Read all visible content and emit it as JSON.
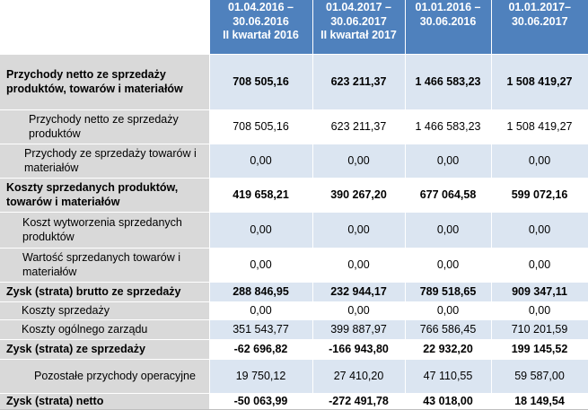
{
  "headers": [
    "",
    "01.04.2016 –\n30.06.2016\nII kwartał 2016",
    "01.04.2017 –\n30.06.2017\nII kwartał 2017",
    "01.01.2016 –\n30.06.2016",
    "01.01.2017–\n30.06.2017"
  ],
  "rows": [
    {
      "label": "Przychody netto ze sprzedaży produktów, towarów i materiałów",
      "values": [
        "708 505,16",
        "623 211,37",
        "1 466 583,23",
        "1 508 419,27"
      ]
    },
    {
      "label": "Przychody netto ze sprzedaży produktów",
      "values": [
        "708 505,16",
        "623 211,37",
        "1 466 583,23",
        "1 508 419,27"
      ]
    },
    {
      "label": "Przychody ze sprzedaży towarów i materiałów",
      "values": [
        "0,00",
        "0,00",
        "0,00",
        "0,00"
      ]
    },
    {
      "label": "Koszty sprzedanych produktów, towarów i materiałów",
      "values": [
        "419 658,21",
        "390 267,20",
        "677 064,58",
        "599 072,16"
      ]
    },
    {
      "label": "Koszt wytworzenia sprzedanych produktów",
      "values": [
        "0,00",
        "0,00",
        "0,00",
        "0,00"
      ]
    },
    {
      "label": "Wartość sprzedanych towarów i materiałów",
      "values": [
        "0,00",
        "0,00",
        "0,00",
        "0,00"
      ]
    },
    {
      "label": "Zysk (strata) brutto ze sprzedaży",
      "values": [
        "288 846,95",
        "232 944,17",
        "789 518,65",
        "909 347,11"
      ]
    },
    {
      "label": "Koszty sprzedaży",
      "values": [
        "0,00",
        "0,00",
        "0,00",
        "0,00"
      ]
    },
    {
      "label": "Koszty ogólnego zarządu",
      "values": [
        "351 543,77",
        "399 887,97",
        "766 586,45",
        "710 201,59"
      ]
    },
    {
      "label": "Zysk (strata) ze sprzedaży",
      "values": [
        "-62 696,82",
        "-166 943,80",
        "22 932,20",
        "199 145,52"
      ]
    },
    {
      "label": "Pozostałe przychody operacyjne",
      "values": [
        "19 750,12",
        "27 410,20",
        "47 110,55",
        "59 587,00"
      ]
    },
    {
      "label": "Zysk (strata) netto",
      "values": [
        "-50 063,99",
        "-272 491,78",
        "43 018,00",
        "18 149,54"
      ]
    }
  ]
}
